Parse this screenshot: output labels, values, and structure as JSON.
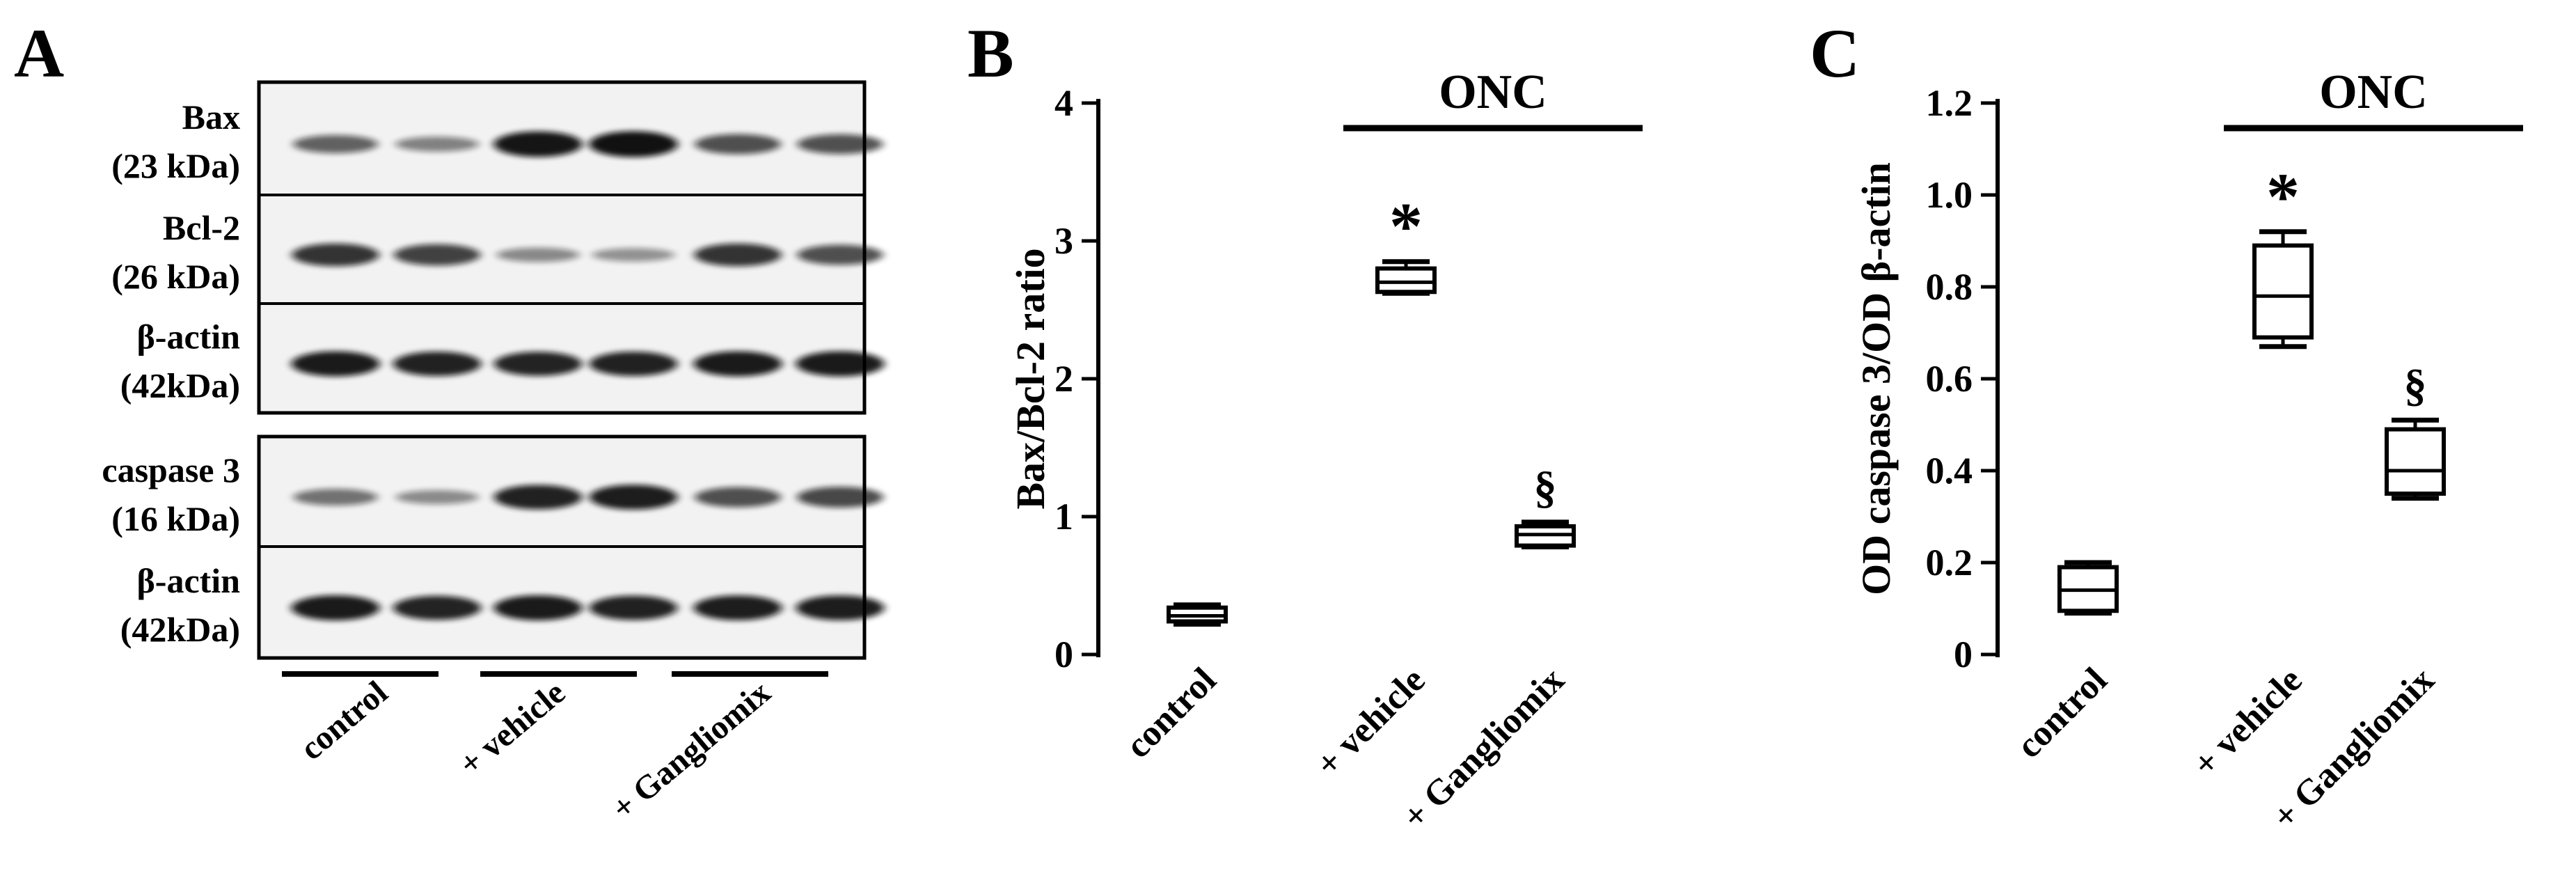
{
  "panels": {
    "a": {
      "letter": "A",
      "blot_labels": [
        {
          "name": "Bax",
          "mw": "(23 kDa)"
        },
        {
          "name": "Bcl-2",
          "mw": "(26 kDa)"
        },
        {
          "name": "β-actin",
          "mw": "(42kDa)"
        },
        {
          "name": "caspase 3",
          "mw": "(16 kDa)"
        },
        {
          "name": "β-actin",
          "mw": "(42kDa)"
        }
      ],
      "groups": [
        "control",
        "+ vehicle",
        "+ Gangliomix"
      ],
      "band_intensity": [
        [
          0.5,
          0.32,
          0.95,
          0.97,
          0.62,
          0.6
        ],
        [
          0.78,
          0.7,
          0.28,
          0.22,
          0.78,
          0.62
        ],
        [
          0.92,
          0.88,
          0.86,
          0.88,
          0.92,
          0.92
        ],
        [
          0.42,
          0.26,
          0.88,
          0.9,
          0.62,
          0.66
        ],
        [
          0.92,
          0.86,
          0.92,
          0.88,
          0.9,
          0.9
        ]
      ],
      "colors": {
        "band": "#111111",
        "blot_bg": "#f2f2f2"
      }
    },
    "b": {
      "letter": "B",
      "bracket_label": "ONC"
    },
    "c": {
      "letter": "C",
      "bracket_label": "ONC"
    }
  },
  "chart_data": [
    {
      "type": "box",
      "panel": "B",
      "ylabel": "Bax/Bcl-2 ratio",
      "categories": [
        "control",
        "+ vehicle",
        "+ Gangliomix"
      ],
      "ylim": [
        0,
        4
      ],
      "yticks": [
        0,
        1,
        2,
        3,
        4
      ],
      "boxes": [
        {
          "min": 0.22,
          "q1": 0.24,
          "median": 0.28,
          "q3": 0.34,
          "max": 0.36
        },
        {
          "min": 2.62,
          "q1": 2.63,
          "median": 2.7,
          "q3": 2.8,
          "max": 2.85
        },
        {
          "min": 0.78,
          "q1": 0.79,
          "median": 0.87,
          "q3": 0.93,
          "max": 0.96
        }
      ],
      "annotations": [
        "",
        "*",
        "§"
      ]
    },
    {
      "type": "box",
      "panel": "C",
      "ylabel": "OD caspase 3/OD β-actin",
      "categories": [
        "control",
        "+ vehicle",
        "+ Gangliomix"
      ],
      "ylim": [
        0,
        1.2
      ],
      "yticks": [
        "0",
        "0.2",
        "0.4",
        "0.6",
        "0.8",
        "1.0",
        "1.2"
      ],
      "boxes": [
        {
          "min": 0.09,
          "q1": 0.095,
          "median": 0.14,
          "q3": 0.19,
          "max": 0.2
        },
        {
          "min": 0.67,
          "q1": 0.69,
          "median": 0.78,
          "q3": 0.89,
          "max": 0.92
        },
        {
          "min": 0.34,
          "q1": 0.35,
          "median": 0.4,
          "q3": 0.49,
          "max": 0.51
        }
      ],
      "annotations": [
        "",
        "*",
        "§"
      ]
    }
  ]
}
